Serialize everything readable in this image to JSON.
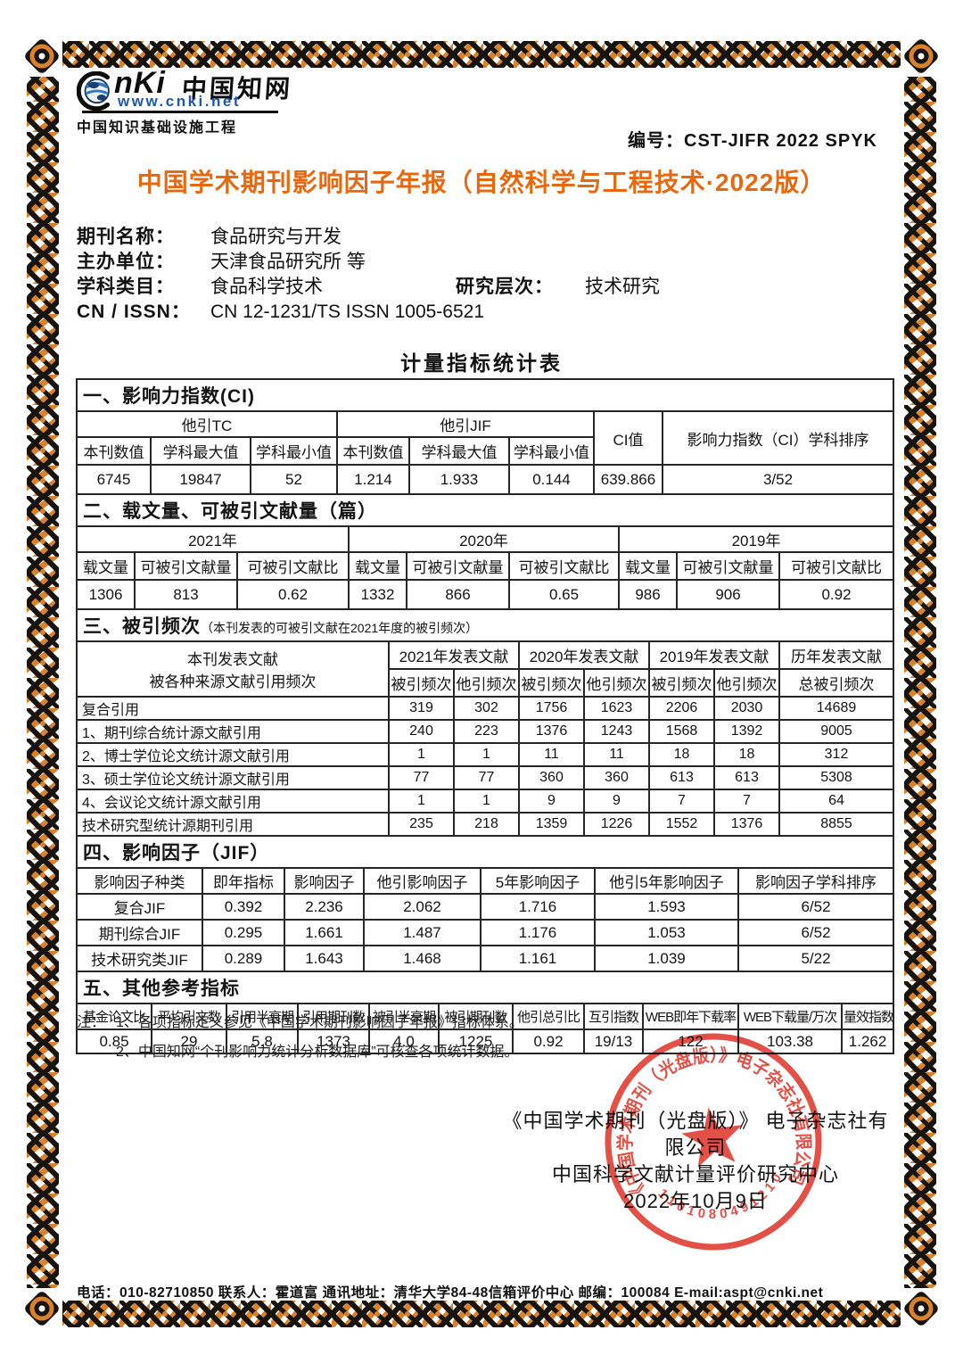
{
  "header": {
    "logo": {
      "latin": "nKi",
      "cn": "中国知网",
      "url": "www.cnki.net",
      "subtitle": "中国知识基础设施工程"
    },
    "serial_label": "编号：",
    "serial_value": "CST-JIFR 2022 SPYK",
    "title": "中国学术期刊影响因子年报（自然科学与工程技术·2022版）"
  },
  "journal_info": {
    "name_label": "期刊名称：",
    "name": "食品研究与开发",
    "sponsor_label": "主办单位：",
    "sponsor": "天津食品研究所 等",
    "subject_label": "学科类目：",
    "subject": "食品科学技术",
    "level_label": "研究层次：",
    "level": "技术研究",
    "cn_issn_label": "CN / ISSN：",
    "cn_issn": "CN 12-1231/TS ISSN 1005-6521"
  },
  "stats_title": "计量指标统计表",
  "section1": {
    "title": "一、影响力指数(CI)",
    "group1": "他引TC",
    "group2": "他引JIF",
    "ci_label": "CI值",
    "rank_label": "影响力指数（CI）学科排序",
    "sub_headers": [
      "本刊数值",
      "学科最大值",
      "学科最小值",
      "本刊数值",
      "学科最大值",
      "学科最小值"
    ],
    "rows": [
      [
        "6745",
        "19847",
        "52",
        "1.214",
        "1.933",
        "0.144",
        "639.866",
        "3/52"
      ]
    ]
  },
  "section2": {
    "title": "二、载文量、可被引文献量（篇）",
    "years": [
      "2021年",
      "2020年",
      "2019年"
    ],
    "sub_headers": [
      "载文量",
      "可被引文献量",
      "可被引文献比",
      "载文量",
      "可被引文献量",
      "可被引文献比",
      "载文量",
      "可被引文献量",
      "可被引文献比"
    ],
    "rows": [
      [
        "1306",
        "813",
        "0.62",
        "1332",
        "866",
        "0.65",
        "986",
        "906",
        "0.92"
      ]
    ]
  },
  "section3": {
    "title": "三、被引频次",
    "subtitle": "（本刊发表的可被引文献在2021年度的被引频次）",
    "col1_line1": "本刊发表文献",
    "col1_line2": "被各种来源文献引用频次",
    "groups": [
      "2021年发表文献",
      "2020年发表文献",
      "2019年发表文献",
      "历年发表文献"
    ],
    "sub_headers": [
      "被引频次",
      "他引频次",
      "被引频次",
      "他引频次",
      "被引频次",
      "他引频次",
      "总被引频次"
    ],
    "rows": [
      [
        "复合引用",
        "319",
        "302",
        "1756",
        "1623",
        "2206",
        "2030",
        "14689"
      ],
      [
        "1、期刊综合统计源文献引用",
        "240",
        "223",
        "1376",
        "1243",
        "1568",
        "1392",
        "9005"
      ],
      [
        "2、博士学位论文统计源文献引用",
        "1",
        "1",
        "11",
        "11",
        "18",
        "18",
        "312"
      ],
      [
        "3、硕士学位论文统计源文献引用",
        "77",
        "77",
        "360",
        "360",
        "613",
        "613",
        "5308"
      ],
      [
        "4、会议论文统计源文献引用",
        "1",
        "1",
        "9",
        "9",
        "7",
        "7",
        "64"
      ],
      [
        "技术研究型统计源期刊引用",
        "235",
        "218",
        "1359",
        "1226",
        "1552",
        "1376",
        "8855"
      ]
    ]
  },
  "section4": {
    "title": "四、影响因子（JIF）",
    "headers": [
      "影响因子种类",
      "即年指标",
      "影响因子",
      "他引影响因子",
      "5年影响因子",
      "他引5年影响因子",
      "影响因子学科排序"
    ],
    "rows": [
      [
        "复合JIF",
        "0.392",
        "2.236",
        "2.062",
        "1.716",
        "1.593",
        "6/52"
      ],
      [
        "期刊综合JIF",
        "0.295",
        "1.661",
        "1.487",
        "1.176",
        "1.053",
        "6/52"
      ],
      [
        "技术研究类JIF",
        "0.289",
        "1.643",
        "1.468",
        "1.161",
        "1.039",
        "5/22"
      ]
    ]
  },
  "section5": {
    "title": "五、其他参考指标",
    "headers": [
      "基金论文比",
      "平均引文数",
      "引用半衰期",
      "引用期刊数",
      "被引半衰期",
      "被引期刊数",
      "他引总引比",
      "互引指数",
      "WEB即年下载率",
      "WEB下载量/万次",
      "量效指数"
    ],
    "rows": [
      [
        "0.85",
        "29",
        "5.8",
        "1373",
        "4.0",
        "1225",
        "0.92",
        "19/13",
        "122",
        "103.38",
        "1.262"
      ]
    ]
  },
  "notes": {
    "label": "注：",
    "items": [
      "1、各项指标定义参见《中国学术期刊影响因子年报》指标体系。",
      "2、中国知网“个刊影响力统计分析数据库”可核查各项统计数据。"
    ]
  },
  "signature": {
    "line1": "《中国学术期刊（光盘版）》 电子杂志社有限公司",
    "line2": "中国科学文献计量评价研究中心",
    "date": "2022年10月9日"
  },
  "stamp": {
    "ring_text": "《中国学术期刊（光盘版）》电子杂志社有限公司",
    "number": "1101080491210"
  },
  "footer": {
    "contact": "电话：010-82710850  联系人：霍道富  通讯地址：清华大学84-48信箱评价中心  邮编：100084  E-mail:aspt@cnki.net"
  },
  "colors": {
    "accent_orange": "#E8680F",
    "border_orange": "#D9822B",
    "border_black": "#17130e",
    "seal_red": "#E0372C",
    "link_blue": "#2257A8"
  }
}
